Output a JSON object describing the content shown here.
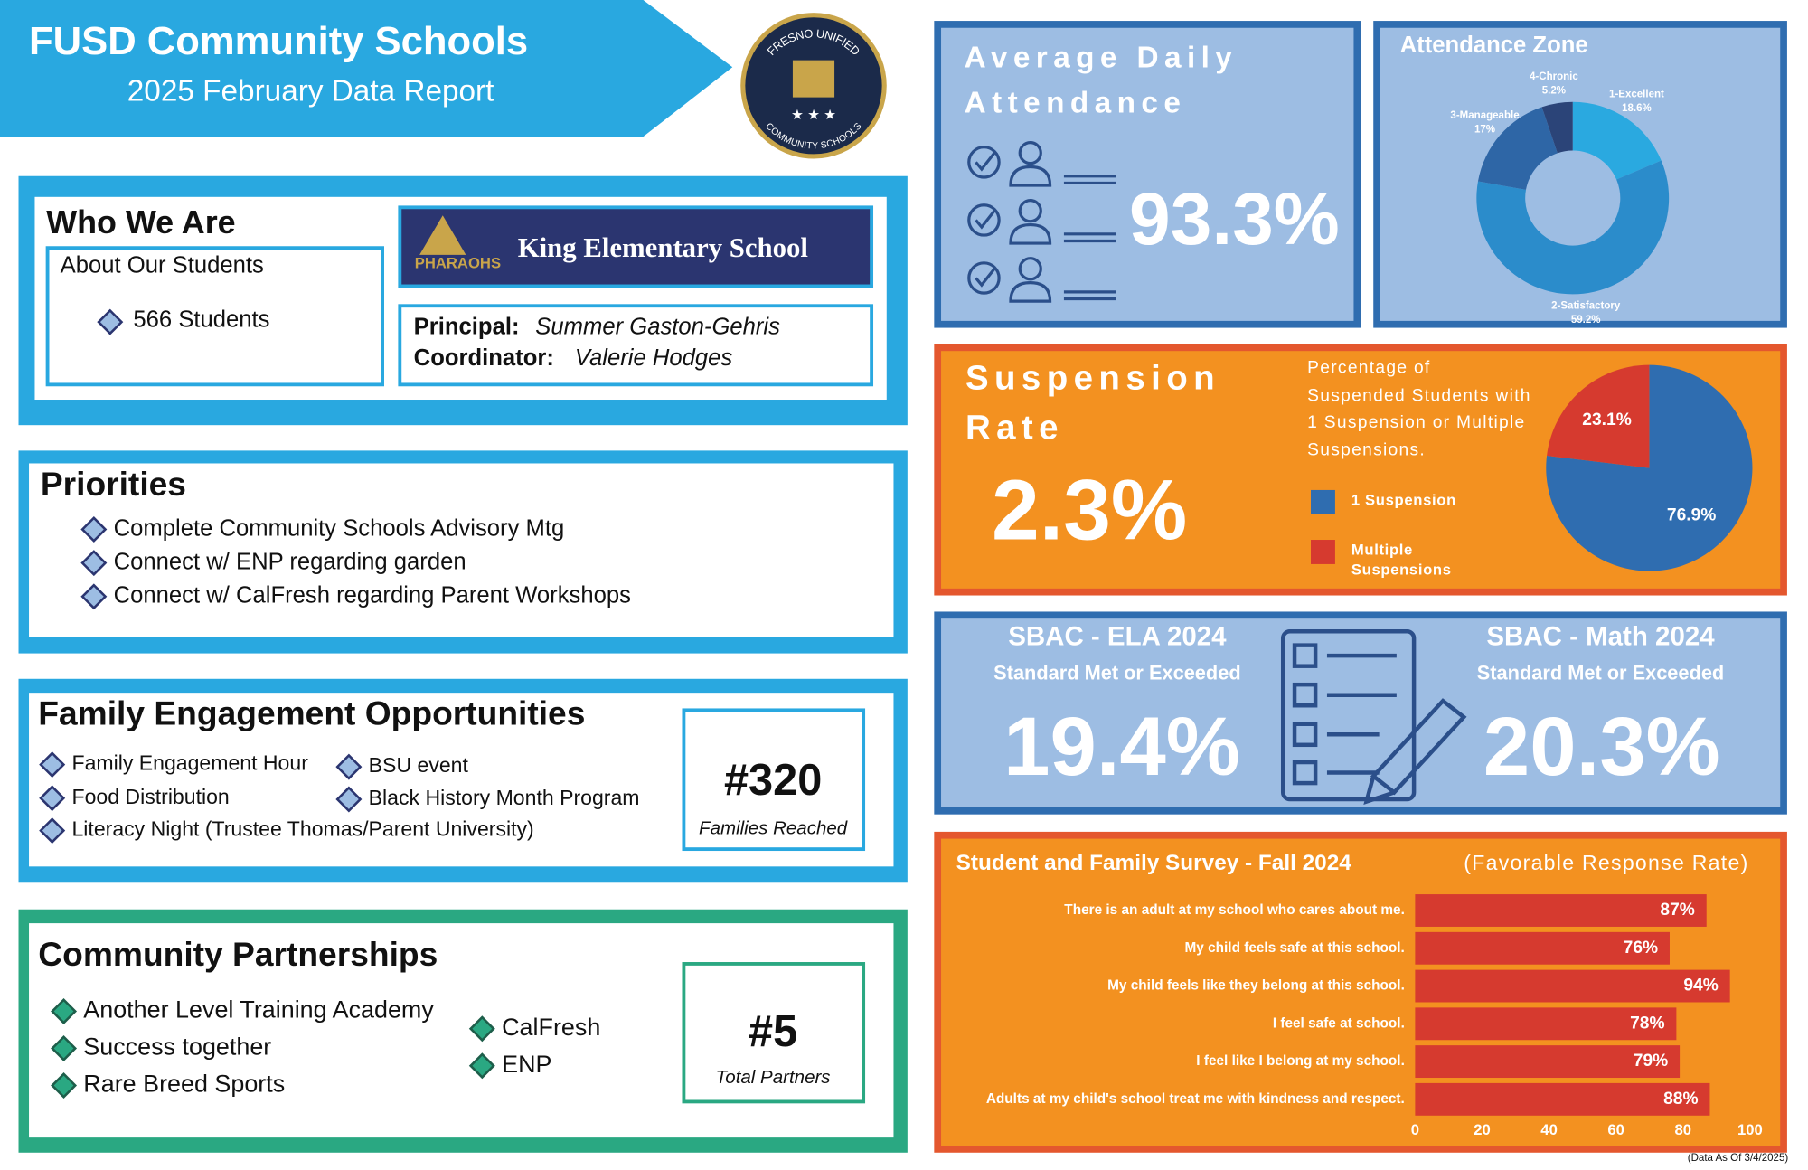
{
  "header": {
    "title": "FUSD Community Schools",
    "subtitle": "2025 February Data Report"
  },
  "logo": {
    "top": "FRESNO UNIFIED",
    "bottom": "COMMUNITY SCHOOLS"
  },
  "who_we_are": {
    "title": "Who We Are",
    "about_title": "About Our Students",
    "students": "566 Students",
    "school": "King Elementary School",
    "school_logo": "PHARAOHS",
    "principal_label": "Principal:",
    "principal": "Summer Gaston-Gehris",
    "coordinator_label": "Coordinator:",
    "coordinator": "Valerie Hodges"
  },
  "priorities": {
    "title": "Priorities",
    "items": [
      "Complete Community Schools Advisory Mtg",
      "Connect w/ ENP regarding garden",
      "Connect w/ CalFresh regarding Parent Workshops"
    ]
  },
  "family_engagement": {
    "title": "Family Engagement Opportunities",
    "items": [
      "Family Engagement Hour",
      "BSU event",
      "Food Distribution",
      "Black History Month Program",
      "Literacy Night (Trustee Thomas/Parent University)"
    ],
    "count": "#320",
    "count_label": "Families Reached"
  },
  "community_partnerships": {
    "title": "Community Partnerships",
    "items": [
      "Another Level Training Academy",
      "Success together",
      "Rare Breed Sports",
      "CalFresh",
      "ENP"
    ],
    "count": "#5",
    "count_label": "Total Partners"
  },
  "attendance": {
    "title": "Average Daily Attendance",
    "value": "93.3%"
  },
  "suspension": {
    "title": "Suspension Rate",
    "value": "2.3%"
  },
  "sbac": [
    {
      "title": "SBAC - ELA 2024",
      "subtitle": "Standard Met or Exceeded",
      "value": "19.4%"
    },
    {
      "title": "SBAC - Math 2024",
      "subtitle": "Standard Met or Exceeded",
      "value": "20.3%"
    }
  ],
  "chart_data": [
    {
      "type": "donut",
      "title": "Attendance Zone",
      "categories": [
        "1-Excellent",
        "2-Satisfactory",
        "3-Manageable",
        "4-Chronic"
      ],
      "values": [
        18.6,
        59.2,
        17,
        5.2
      ],
      "value_labels": [
        "18.6%",
        "59.2%",
        "17%",
        "5.2%"
      ],
      "colors": [
        "#2aa9e0",
        "#2b8ccb",
        "#2e66a6",
        "#2b4478"
      ]
    },
    {
      "type": "pie",
      "subtitle": "Percentage of Suspended Students with 1 Suspension or Multiple Suspensions.",
      "categories": [
        "1 Suspension",
        "Multiple Suspensions"
      ],
      "values": [
        76.9,
        23.1
      ],
      "value_labels": [
        "76.9%",
        "23.1%"
      ],
      "colors": [
        "#2f6db0",
        "#d63a2f"
      ]
    },
    {
      "type": "bar",
      "orientation": "horizontal",
      "title": "Student and Family Survey - Fall 2024",
      "subtitle": "(Favorable Response Rate)",
      "categories": [
        "There is an adult at my school who cares about me.",
        "My child feels safe at this school.",
        "My child feels like they belong at this school.",
        "I feel safe at school.",
        "I feel like I belong at my school.",
        "Adults at my child's school treat me with kindness and respect."
      ],
      "values": [
        87,
        76,
        94,
        78,
        79,
        88
      ],
      "value_labels": [
        "87%",
        "76%",
        "94%",
        "78%",
        "79%",
        "88%"
      ],
      "color": "#d63a2f",
      "xlim": [
        0,
        100
      ],
      "xticks": [
        0,
        20,
        40,
        60,
        80,
        100
      ]
    }
  ],
  "footer": "(Data As Of 3/4/2025)"
}
